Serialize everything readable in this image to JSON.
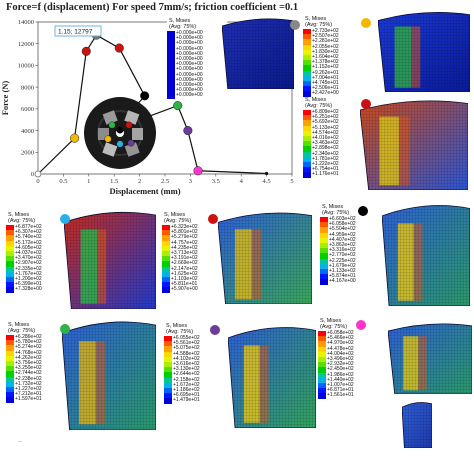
{
  "title": "Force=f (displacement) For speed 7mm/s; friction coefficient =0.1",
  "tiny_mark": "..",
  "chart_data": {
    "type": "line",
    "xlabel": "Displacement (mm)",
    "ylabel": "Force (N)",
    "xlim": [
      0,
      5
    ],
    "ylim": [
      0,
      14000
    ],
    "xticks": [
      "0",
      "0.5",
      "1",
      "1.5",
      "2",
      "2.5",
      "3",
      "3.5",
      "4",
      "4.5",
      "5"
    ],
    "yticks": [
      "0",
      "2000",
      "4000",
      "6000",
      "8000",
      "10000",
      "12000",
      "14000"
    ],
    "annotation": "1.15; 12797",
    "points": [
      {
        "x": 0,
        "y": 0,
        "color": "#888888"
      },
      {
        "x": 0.72,
        "y": 3300,
        "color": "#f5b800"
      },
      {
        "x": 0.95,
        "y": 11300,
        "color": "#cc1111"
      },
      {
        "x": 1.15,
        "y": 12797,
        "color": "#777777"
      },
      {
        "x": 1.6,
        "y": 11600,
        "color": "#cc1111"
      },
      {
        "x": 2.1,
        "y": 7200,
        "color": "#000000"
      },
      {
        "x": 1.55,
        "y": 4200,
        "color": "#2ab0e8"
      },
      {
        "x": 2.75,
        "y": 6300,
        "color": "#2db34a"
      },
      {
        "x": 2.95,
        "y": 4000,
        "color": "#6a3d9a"
      },
      {
        "x": 3.15,
        "y": 300,
        "color": "#ff33cc"
      },
      {
        "x": 4.5,
        "y": 50,
        "color": "#111111"
      }
    ]
  },
  "legends": [
    {
      "id": "gray",
      "dot": "#888888",
      "h1": "S, Mises",
      "h2": "(Avg: 75%)",
      "values": [
        "+0.000e+00",
        "+0.000e+00",
        "+0.000e+00",
        "+0.000e+00",
        "+0.000e+00",
        "+0.000e+00",
        "+0.000e+00",
        "+0.000e+00",
        "+0.000e+00",
        "+0.000e+00",
        "+0.000e+00",
        "+0.000e+00",
        "+0.000e+00"
      ]
    },
    {
      "id": "yellow",
      "dot": "#f5b800",
      "h1": "S, Mises",
      "h2": "(Avg: 75%)",
      "values": [
        "+2.733e+02",
        "+2.507e+02",
        "+2.281e+02",
        "+2.055e+02",
        "+1.830e+02",
        "+1.604e+02",
        "+1.378e+02",
        "+1.152e+02",
        "+9.262e+01",
        "+7.004e+01",
        "+4.745e+01",
        "+2.506e+01",
        "+2.427e+00"
      ]
    },
    {
      "id": "red-top",
      "dot": "#cc1111",
      "h1": "S, Mises",
      "h2": "(Avg: 75%)",
      "values": [
        "+6.809e+02",
        "+6.251e+02",
        "+5.692e+02",
        "+5.133e+02",
        "+4.574e+02",
        "+4.016e+02",
        "+3.463e+02",
        "+2.898e+02",
        "+2.340e+02",
        "+1.781e+02",
        "+1.222e+02",
        "+6.754e+01",
        "+1.176e+01"
      ]
    },
    {
      "id": "blue",
      "dot": "#2ab0e8",
      "h1": "S, Mises",
      "h2": "(Avg: 75%)",
      "values": [
        "+6.877e+02",
        "+6.307e+02",
        "+5.740e+02",
        "+5.172e+02",
        "+4.605e+02",
        "+4.037e+02",
        "+3.470e+02",
        "+2.907e+02",
        "+2.335e+02",
        "+1.767e+02",
        "+1.200e+02",
        "+6.399e+01",
        "+7.328e+00"
      ]
    },
    {
      "id": "red-mid",
      "dot": "#cc1111",
      "h1": "S, Mises",
      "h2": "(Avg: 75%)",
      "values": [
        "+6.323e+02",
        "+5.801e+02",
        "+5.279e+02",
        "+4.757e+02",
        "+4.235e+02",
        "+3.713e+02",
        "+3.191e+02",
        "+2.669e+02",
        "+2.147e+02",
        "+1.625e+02",
        "+1.103e+02",
        "+5.811e+01",
        "+5.907e+00"
      ]
    },
    {
      "id": "black",
      "dot": "#000000",
      "h1": "S, Mises",
      "h2": "(Avg: 75%)",
      "values": [
        "+6.603e+02",
        "+6.058e+02",
        "+5.504e+02",
        "+4.959e+02",
        "+4.407e+02",
        "+3.862e+02",
        "+3.316e+02",
        "+2.770e+02",
        "+2.225e+02",
        "+1.679e+02",
        "+1.133e+02",
        "+5.874e+01",
        "+4.167e+00"
      ]
    },
    {
      "id": "green",
      "dot": "#2db34a",
      "h1": "S, Mises",
      "h2": "(Avg: 75%)",
      "values": [
        "+6.286e+02",
        "+5.780e+02",
        "+5.274e+02",
        "+4.768e+02",
        "+4.262e+02",
        "+3.756e+02",
        "+3.250e+02",
        "+2.744e+02",
        "+2.238e+02",
        "+1.732e+02",
        "+1.227e+02",
        "+7.212e+01",
        "+1.597e+01"
      ]
    },
    {
      "id": "purple",
      "dot": "#6a3d9a",
      "h1": "S, Mises",
      "h2": "(Avg: 75%)",
      "values": [
        "+6.055e+02",
        "+5.561e+02",
        "+5.075e+02",
        "+4.588e+02",
        "+4.102e+02",
        "+3.616e+02",
        "+3.130e+02",
        "+2.644e+02",
        "+2.158e+02",
        "+1.672e+02",
        "+1.186e+02",
        "+6.695e+01",
        "+1.479e+01"
      ]
    },
    {
      "id": "pink",
      "dot": "#ff33cc",
      "h1": "S, Mises",
      "h2": "(Avg: 75%)",
      "values": [
        "+6.058e+02",
        "+5.466e+02",
        "+4.970e+02",
        "+4.478e+02",
        "+4.004e+02",
        "+3.496e+02",
        "+2.932e+02",
        "+2.450e+02",
        "+1.986e+02",
        "+1.440e+02",
        "+1.007e+02",
        "+6.871e+01",
        "+1.561e+01"
      ]
    }
  ],
  "scale_colors": [
    "#ff0000",
    "#ff5a00",
    "#ffa000",
    "#ffd700",
    "#e8f400",
    "#a8f000",
    "#55e000",
    "#00d000",
    "#00c89a",
    "#00b4e6",
    "#0064ff",
    "#0014ff",
    "#0000d8"
  ]
}
